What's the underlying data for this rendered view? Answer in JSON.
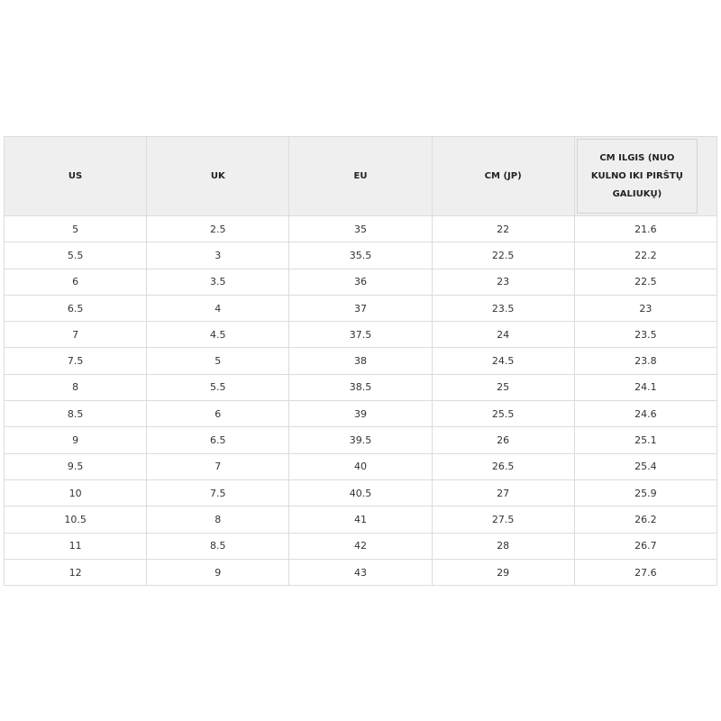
{
  "table": {
    "headers": [
      "US",
      "UK",
      "EU",
      "CM (JP)",
      "CM ILGIS (NUO KULNO IKI PIRŠTŲ GALIUKŲ)"
    ],
    "rows": [
      [
        "5",
        "2.5",
        "35",
        "22",
        "21.6"
      ],
      [
        "5.5",
        "3",
        "35.5",
        "22.5",
        "22.2"
      ],
      [
        "6",
        "3.5",
        "36",
        "23",
        "22.5"
      ],
      [
        "6.5",
        "4",
        "37",
        "23.5",
        "23"
      ],
      [
        "7",
        "4.5",
        "37.5",
        "24",
        "23.5"
      ],
      [
        "7.5",
        "5",
        "38",
        "24.5",
        "23.8"
      ],
      [
        "8",
        "5.5",
        "38.5",
        "25",
        "24.1"
      ],
      [
        "8.5",
        "6",
        "39",
        "25.5",
        "24.6"
      ],
      [
        "9",
        "6.5",
        "39.5",
        "26",
        "25.1"
      ],
      [
        "9.5",
        "7",
        "40",
        "26.5",
        "25.4"
      ],
      [
        "10",
        "7.5",
        "40.5",
        "27",
        "25.9"
      ],
      [
        "10.5",
        "8",
        "41",
        "27.5",
        "26.2"
      ],
      [
        "11",
        "8.5",
        "42",
        "28",
        "26.7"
      ],
      [
        "12",
        "9",
        "43",
        "29",
        "27.6"
      ]
    ]
  }
}
